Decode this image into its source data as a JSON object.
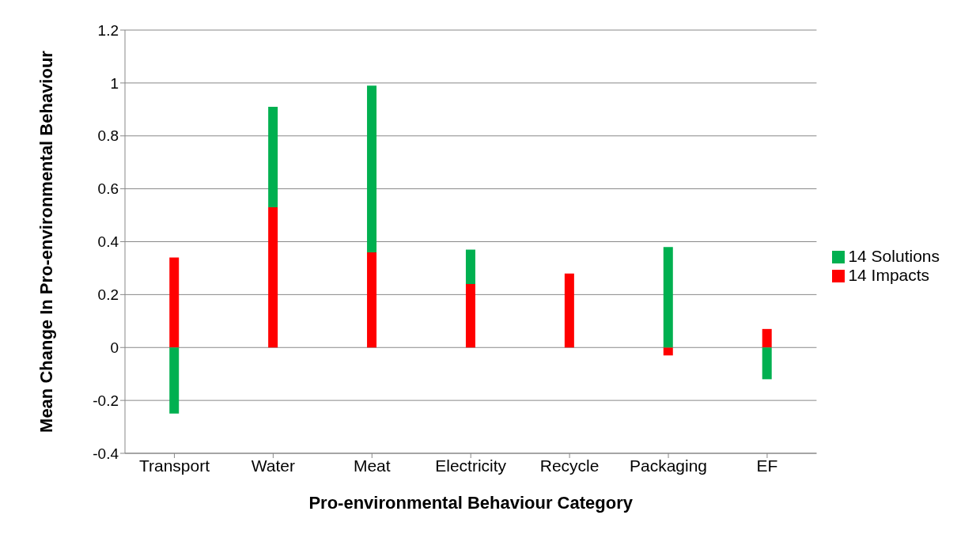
{
  "chart_data": {
    "type": "bar",
    "stacked": true,
    "xlabel": "Pro-environmental Behaviour Category",
    "ylabel": "Mean Change In Pro-environmental Behaviour",
    "categories": [
      "Transport",
      "Water",
      "Meat",
      "Electricity",
      "Recycle",
      "Packaging",
      "EF"
    ],
    "series": [
      {
        "name": "14 Impacts",
        "color": "#ff0000",
        "values": [
          0.34,
          0.53,
          0.36,
          0.24,
          0.28,
          -0.03,
          0.07
        ]
      },
      {
        "name": "14 Solutions",
        "color": "#00b050",
        "values": [
          -0.25,
          0.38,
          0.63,
          0.13,
          null,
          0.38,
          -0.12
        ]
      }
    ],
    "ylim": [
      -0.4,
      1.2
    ],
    "yticks": [
      {
        "value": -0.4,
        "label": "-0.4"
      },
      {
        "value": -0.2,
        "label": "-0.2"
      },
      0,
      {
        "value": 0.2,
        "label": "0.2"
      },
      {
        "value": 0.4,
        "label": "0.4"
      },
      {
        "value": 0.6,
        "label": "0.6"
      },
      {
        "value": 0.8,
        "label": "0.8"
      },
      1,
      {
        "value": 1.2,
        "label": "1.2"
      }
    ],
    "grid": "y",
    "legend": "right"
  }
}
